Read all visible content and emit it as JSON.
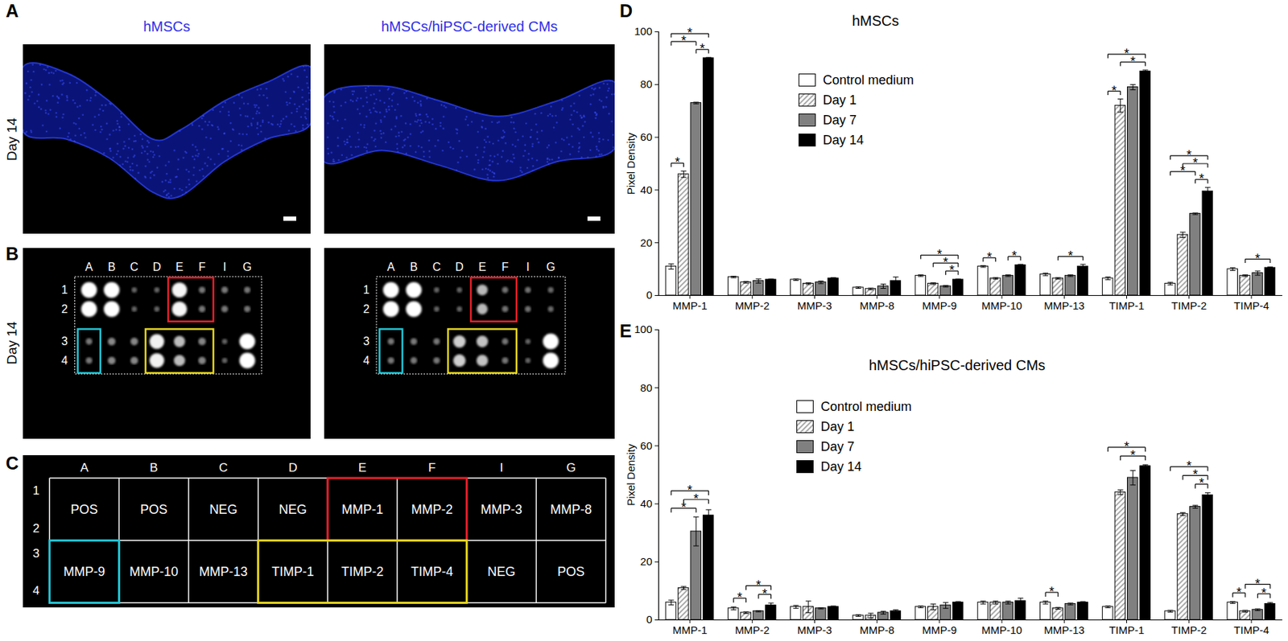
{
  "panel_labels": [
    "A",
    "B",
    "C",
    "D",
    "E"
  ],
  "images": {
    "titles": [
      "hMSCs",
      "hMSCs/hiPSC-derived CMs"
    ],
    "row_label": "Day 14",
    "color": "#2f2fe6"
  },
  "array_layout": {
    "columns": [
      "A",
      "B",
      "C",
      "D",
      "E",
      "F",
      "I",
      "G"
    ],
    "rows": [
      [
        "1",
        "2"
      ],
      [
        "3",
        "4"
      ]
    ],
    "cells": [
      [
        "POS",
        "POS",
        "NEG",
        "NEG",
        "MMP-1",
        "MMP-2",
        "MMP-3",
        "MMP-8"
      ],
      [
        "MMP-9",
        "MMP-10",
        "MMP-13",
        "TIMP-1",
        "TIMP-2",
        "TIMP-4",
        "NEG",
        "POS"
      ]
    ],
    "positive_control": "POS",
    "negative_control": "NEG",
    "highlights": [
      {
        "color": "#e8202a",
        "cells": [
          "MMP-1",
          "MMP-2"
        ]
      },
      {
        "color": "#22c8d8",
        "cells": [
          "MMP-9"
        ]
      },
      {
        "color": "#e8d81e",
        "cells": [
          "TIMP-1",
          "TIMP-2",
          "TIMP-4"
        ]
      }
    ]
  },
  "chart_data": [
    {
      "type": "bar",
      "title": "hMSCs",
      "ylabel": "Pixel Density",
      "categories": [
        "MMP-1",
        "MMP-2",
        "MMP-3",
        "MMP-8",
        "MMP-9",
        "MMP-10",
        "MMP-13",
        "TIMP-1",
        "TIMP-2",
        "TIMP-4"
      ],
      "series": [
        {
          "name": "Control medium",
          "color": "#ffffff",
          "values": [
            11,
            7,
            6,
            3,
            7.5,
            11,
            8,
            6.5,
            4.5,
            10
          ],
          "errors": [
            1,
            0.3,
            0.3,
            0.3,
            0.3,
            0.3,
            0.5,
            0.5,
            0.5,
            0.5
          ]
        },
        {
          "name": "Day 1",
          "color": "#9a9a9a",
          "line_style": "hatched",
          "values": [
            46,
            5,
            4.5,
            2.5,
            4.5,
            6.5,
            6.5,
            72,
            23,
            7.5
          ],
          "errors": [
            1.2,
            0.3,
            0.3,
            0.3,
            0.3,
            0.3,
            0.3,
            2.5,
            1,
            0.3
          ]
        },
        {
          "name": "Day 7",
          "color": "#808080",
          "values": [
            73,
            5.5,
            5,
            3.5,
            3.5,
            7.5,
            7.5,
            79,
            31,
            8.5
          ],
          "errors": [
            0.3,
            0.8,
            0.5,
            0.8,
            0.3,
            0.3,
            0.3,
            1,
            0.3,
            0.8
          ]
        },
        {
          "name": "Day 14",
          "color": "#000000",
          "values": [
            90,
            6,
            6.5,
            5.5,
            6,
            11.5,
            11,
            85,
            39.5,
            10.5
          ],
          "errors": [
            0.3,
            0.3,
            0.3,
            1.5,
            0.3,
            0.3,
            0.8,
            0.5,
            1.5,
            0.3
          ]
        }
      ],
      "ylim": [
        0,
        100
      ],
      "yticks": [
        0,
        20,
        40,
        60,
        80,
        100
      ],
      "legend": "top",
      "significance": [
        {
          "category": "MMP-1",
          "from": "Control medium",
          "to": "Day 1",
          "label": "*"
        },
        {
          "category": "MMP-1",
          "from": "Control medium",
          "to": "Day 7",
          "label": "*"
        },
        {
          "category": "MMP-1",
          "from": "Control medium",
          "to": "Day 14",
          "label": "*"
        },
        {
          "category": "MMP-1",
          "from": "Day 7",
          "to": "Day 14",
          "label": "*"
        },
        {
          "category": "MMP-9",
          "from": "Control medium",
          "to": "Day 14",
          "label": "*"
        },
        {
          "category": "MMP-9",
          "from": "Day 1",
          "to": "Day 14",
          "label": "*"
        },
        {
          "category": "MMP-9",
          "from": "Day 7",
          "to": "Day 14",
          "label": "*"
        },
        {
          "category": "MMP-10",
          "from": "Control medium",
          "to": "Day 1",
          "label": "*"
        },
        {
          "category": "MMP-10",
          "from": "Day 7",
          "to": "Day 14",
          "label": "*"
        },
        {
          "category": "MMP-13",
          "from": "Day 1",
          "to": "Day 14",
          "label": "*"
        },
        {
          "category": "TIMP-1",
          "from": "Control medium",
          "to": "Day 1",
          "label": "*"
        },
        {
          "category": "TIMP-1",
          "from": "Control medium",
          "to": "Day 14",
          "label": "*"
        },
        {
          "category": "TIMP-1",
          "from": "Day 1",
          "to": "Day 14",
          "label": "*"
        },
        {
          "category": "TIMP-2",
          "from": "Control medium",
          "to": "Day 7",
          "label": "*"
        },
        {
          "category": "TIMP-2",
          "from": "Control medium",
          "to": "Day 14",
          "label": "*"
        },
        {
          "category": "TIMP-2",
          "from": "Day 1",
          "to": "Day 14",
          "label": "*"
        },
        {
          "category": "TIMP-2",
          "from": "Day 7",
          "to": "Day 14",
          "label": "*"
        },
        {
          "category": "TIMP-4",
          "from": "Day 1",
          "to": "Day 14",
          "label": "*"
        }
      ]
    },
    {
      "type": "bar",
      "title": "hMSCs/hiPSC-derived CMs",
      "ylabel": "Pixel Density",
      "categories": [
        "MMP-1",
        "MMP-2",
        "MMP-3",
        "MMP-8",
        "MMP-9",
        "MMP-10",
        "MMP-13",
        "TIMP-1",
        "TIMP-2",
        "TIMP-4"
      ],
      "series": [
        {
          "name": "Control medium",
          "color": "#ffffff",
          "values": [
            6,
            4,
            4.5,
            1.5,
            4.5,
            6,
            6,
            4.5,
            3,
            6
          ],
          "errors": [
            0.8,
            0.5,
            0.5,
            0.3,
            0.3,
            0.5,
            0.5,
            0.3,
            0.3,
            0.3
          ]
        },
        {
          "name": "Day 1",
          "color": "#9a9a9a",
          "line_style": "hatched",
          "values": [
            11,
            2.5,
            4.5,
            1.5,
            4.5,
            6,
            4,
            44,
            36.5,
            3
          ],
          "errors": [
            0.5,
            0.3,
            2,
            0.8,
            1,
            0.5,
            0.3,
            0.8,
            0.5,
            0.3
          ]
        },
        {
          "name": "Day 7",
          "color": "#808080",
          "values": [
            30.5,
            3,
            4,
            2.5,
            5,
            6,
            5.5,
            49,
            39,
            3.5
          ],
          "errors": [
            5,
            0.2,
            0.2,
            0.5,
            1,
            0.5,
            0.3,
            2.5,
            0.5,
            0.3
          ]
        },
        {
          "name": "Day 14",
          "color": "#000000",
          "values": [
            36,
            5,
            4.5,
            3,
            6,
            6.5,
            6,
            53,
            43,
            5.5
          ],
          "errors": [
            2,
            0.8,
            0.3,
            0.5,
            0.3,
            1,
            0.3,
            0.5,
            0.8,
            0.5
          ]
        }
      ],
      "ylim": [
        0,
        100
      ],
      "yticks": [
        0,
        20,
        40,
        60,
        80,
        100
      ],
      "legend": "top",
      "significance": [
        {
          "category": "MMP-1",
          "from": "Control medium",
          "to": "Day 7",
          "label": "*"
        },
        {
          "category": "MMP-1",
          "from": "Control medium",
          "to": "Day 14",
          "label": "*"
        },
        {
          "category": "MMP-1",
          "from": "Day 1",
          "to": "Day 14",
          "label": "*"
        },
        {
          "category": "MMP-2",
          "from": "Control medium",
          "to": "Day 1",
          "label": "*"
        },
        {
          "category": "MMP-2",
          "from": "Day 1",
          "to": "Day 14",
          "label": "*"
        },
        {
          "category": "MMP-2",
          "from": "Day 7",
          "to": "Day 14",
          "label": "*"
        },
        {
          "category": "MMP-13",
          "from": "Control medium",
          "to": "Day 1",
          "label": "*"
        },
        {
          "category": "TIMP-1",
          "from": "Control medium",
          "to": "Day 14",
          "label": "*"
        },
        {
          "category": "TIMP-1",
          "from": "Day 1",
          "to": "Day 14",
          "label": "*"
        },
        {
          "category": "TIMP-2",
          "from": "Control medium",
          "to": "Day 14",
          "label": "*"
        },
        {
          "category": "TIMP-2",
          "from": "Day 1",
          "to": "Day 14",
          "label": "*"
        },
        {
          "category": "TIMP-2",
          "from": "Day 7",
          "to": "Day 14",
          "label": "*"
        },
        {
          "category": "TIMP-4",
          "from": "Control medium",
          "to": "Day 1",
          "label": "*"
        },
        {
          "category": "TIMP-4",
          "from": "Day 1",
          "to": "Day 14",
          "label": "*"
        },
        {
          "category": "TIMP-4",
          "from": "Day 7",
          "to": "Day 14",
          "label": "*"
        }
      ]
    }
  ]
}
